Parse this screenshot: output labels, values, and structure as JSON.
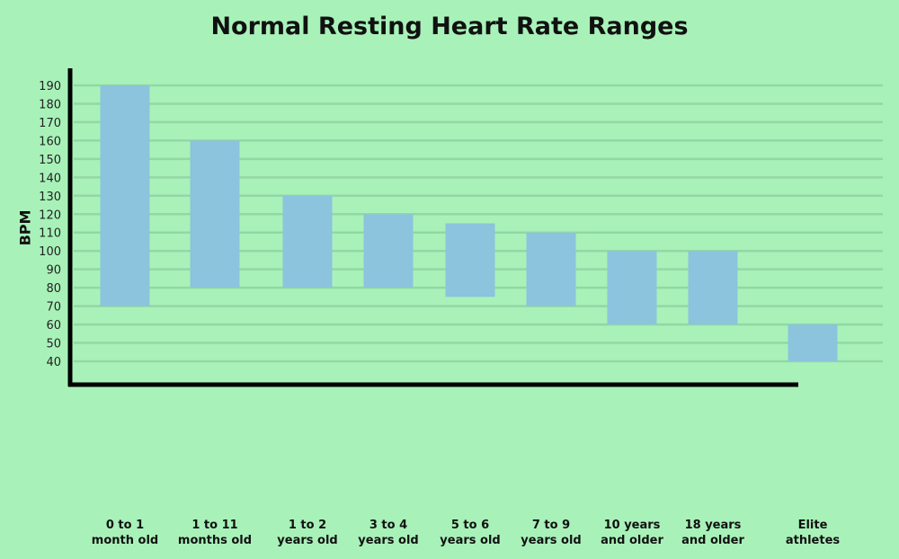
{
  "chart_data": {
    "type": "bar",
    "title": "Normal Resting Heart Rate Ranges",
    "ylabel": "BPM",
    "xlabel": "",
    "ylim": [
      30,
      195
    ],
    "yticks": [
      40,
      50,
      60,
      70,
      80,
      90,
      100,
      110,
      120,
      130,
      140,
      150,
      160,
      170,
      180,
      190
    ],
    "grid": true,
    "categories": [
      {
        "line1": "0 to 1",
        "line2": "month old",
        "low": 70,
        "high": 190
      },
      {
        "line1": "1 to 11",
        "line2": "months old",
        "low": 80,
        "high": 160
      },
      {
        "line1": "1 to 2",
        "line2": "years old",
        "low": 80,
        "high": 130
      },
      {
        "line1": "3 to 4",
        "line2": "years old",
        "low": 80,
        "high": 120
      },
      {
        "line1": "5 to 6",
        "line2": "years old",
        "low": 75,
        "high": 115
      },
      {
        "line1": "7 to 9",
        "line2": "years old",
        "low": 70,
        "high": 110
      },
      {
        "line1": "10 years",
        "line2": "and older",
        "low": 60,
        "high": 100
      },
      {
        "line1": "18 years",
        "line2": "and older",
        "low": 60,
        "high": 100
      },
      {
        "line1": "Elite",
        "line2": "athletes",
        "low": 40,
        "high": 60
      }
    ]
  },
  "colors": {
    "background": "#a8f2b9",
    "bar": "#8cc3dd",
    "grid": "#93d7a6",
    "axis": "#000000"
  }
}
